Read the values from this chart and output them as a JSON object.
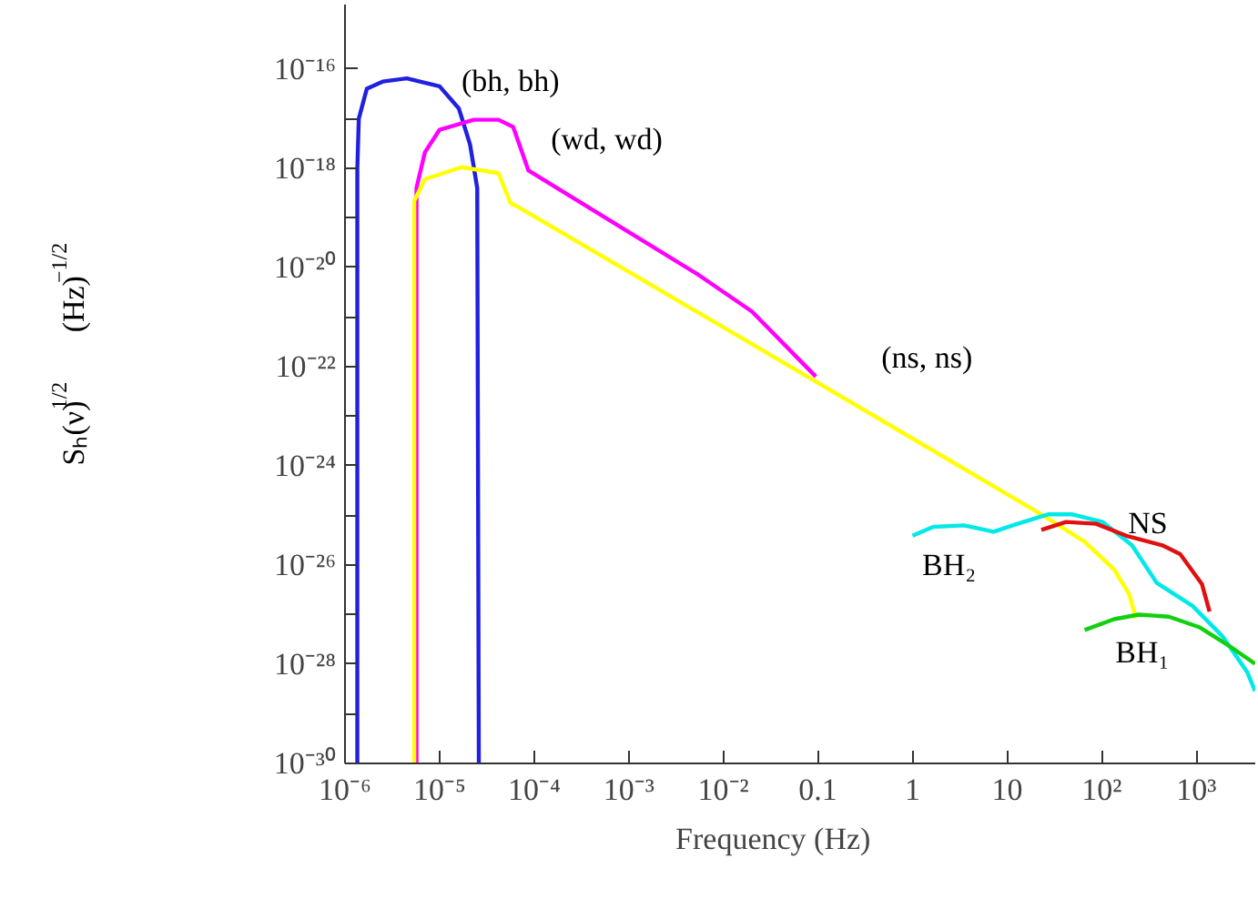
{
  "chart_data": {
    "type": "line",
    "log": "xy",
    "grid": false,
    "xlabel": "Frequency        (Hz)",
    "ylabel": "Sₕ(ν)$^{1/2}$        (Hz)$^{−1/2}$",
    "xlim": [
      1e-06,
      4200
    ],
    "ylim": [
      1e-30,
      2e-15
    ],
    "xticks": [
      {
        "value": 1e-06,
        "label": "10⁻⁶"
      },
      {
        "value": 1e-05,
        "label": "10⁻⁵"
      },
      {
        "value": 0.0001,
        "label": "10⁻⁴"
      },
      {
        "value": 0.001,
        "label": "10⁻³"
      },
      {
        "value": 0.01,
        "label": "10⁻²"
      },
      0.1,
      1,
      10,
      {
        "value": 100,
        "label": "10²"
      },
      {
        "value": 1000,
        "label": "10³"
      }
    ],
    "yticks": [
      {
        "value": 1e-30,
        "label": "10⁻³⁰"
      },
      {
        "value": 1e-29,
        "label": null
      },
      {
        "value": 1e-28,
        "label": "10⁻²⁸"
      },
      {
        "value": 1e-27,
        "label": null
      },
      {
        "value": 1e-26,
        "label": "10⁻²⁶"
      },
      {
        "value": 1e-25,
        "label": null
      },
      {
        "value": 1e-24,
        "label": "10⁻²⁴"
      },
      {
        "value": 1e-23,
        "label": null
      },
      {
        "value": 1e-22,
        "label": "10⁻²²"
      },
      {
        "value": 1e-21,
        "label": null
      },
      {
        "value": 1e-20,
        "label": "10⁻²⁰"
      },
      {
        "value": 1e-19,
        "label": null
      },
      {
        "value": 1e-18,
        "label": "10⁻¹⁸"
      },
      {
        "value": 1e-17,
        "label": null
      },
      {
        "value": 1e-16,
        "label": "10⁻¹⁶"
      }
    ],
    "series": [
      {
        "name": "(bh, bh)",
        "color": "#2020e0",
        "x": [
          1.35e-06,
          1.35e-06,
          1.4e-06,
          1.7e-06,
          2.5e-06,
          4.5e-06,
          1e-05,
          1.6e-05,
          2.1e-05,
          2.5e-05,
          2.6e-05
        ],
        "values": [
          1e-30,
          1e-18,
          1e-17,
          4e-17,
          5.6e-17,
          6.5e-17,
          4.5e-17,
          1.6e-17,
          3e-18,
          4e-19,
          1e-30
        ]
      },
      {
        "name": "(wd, wd)",
        "color": "#ff00ff",
        "x": [
          5.7e-06,
          5.7e-06,
          7e-06,
          1e-05,
          2.3e-05,
          4.2e-05,
          6e-05,
          8.7e-05,
          0.0054,
          0.02,
          0.095
        ],
        "values": [
          1e-30,
          4e-19,
          2.1e-18,
          6e-18,
          9.5e-18,
          9.5e-18,
          6.8e-18,
          9e-19,
          7.2e-21,
          1.3e-21,
          6.3e-23
        ]
      },
      {
        "name": "(ns, ns)",
        "color": "#ffff00",
        "x": [
          5.4e-06,
          5.4e-06,
          7e-06,
          1.7e-05,
          4.2e-05,
          5.6e-05,
          7e-05,
          0.095,
          23,
          66,
          135,
          195,
          230
        ],
        "values": [
          1e-30,
          2.2e-19,
          6e-19,
          1.05e-18,
          8e-19,
          2e-19,
          1.6e-19,
          5e-23,
          1.05e-25,
          2.95e-26,
          8.1e-27,
          2.6e-27,
          8.5e-28
        ]
      },
      {
        "name": "BH₂",
        "color": "#00e8e8",
        "x": [
          1,
          1.66,
          3.5,
          7.2,
          12.9,
          27,
          49,
          102,
          209,
          380,
          912,
          1905,
          3470,
          4170
        ],
        "values": [
          3.9e-26,
          5.9e-26,
          6.3e-26,
          4.7e-26,
          6.8e-26,
          1.05e-25,
          1.05e-25,
          7.4e-26,
          2.5e-26,
          4.4e-27,
          1.5e-27,
          3.6e-28,
          6.8e-29,
          2.9e-29
        ]
      },
      {
        "name": "NS",
        "color": "#e01010",
        "x": [
          23,
          42,
          87,
          182,
          437,
          676,
          1148,
          1380
        ],
        "values": [
          5.1e-26,
          7.4e-26,
          6.8e-26,
          3.9e-26,
          2.5e-26,
          1.66e-26,
          4.1e-27,
          1.15e-27
        ]
      },
      {
        "name": "BH₁",
        "color": "#10d010",
        "x": [
          66,
          135,
          245,
          513,
          1072,
          2188,
          4170
        ],
        "values": [
          4.9e-28,
          8.1e-28,
          1e-27,
          9.1e-28,
          5.6e-28,
          2.4e-28,
          1.02e-28
        ]
      }
    ]
  }
}
